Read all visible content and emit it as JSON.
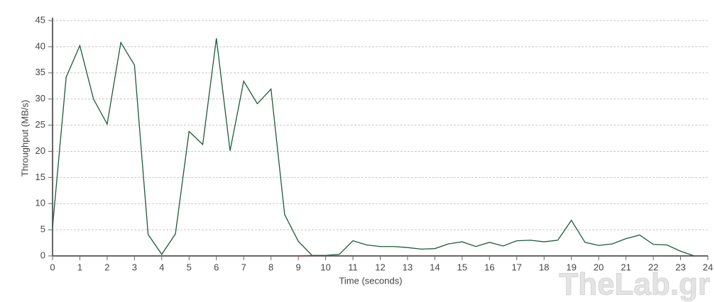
{
  "chart_data": {
    "type": "line",
    "x_label": "Time (seconds)",
    "y_label": "Throughput (MB/s)",
    "watermark": "TheLab.gr",
    "x": [
      0,
      0.5,
      1,
      1.5,
      2,
      2.5,
      3,
      3.5,
      4,
      4.5,
      5,
      5.5,
      6,
      6.5,
      7,
      7.5,
      8,
      8.5,
      9,
      9.5,
      10,
      10.5,
      11,
      11.5,
      12,
      12.5,
      13,
      13.5,
      14,
      14.5,
      15,
      15.5,
      16,
      16.5,
      17,
      17.5,
      18,
      18.5,
      19,
      19.5,
      20,
      20.5,
      21,
      21.5,
      22,
      22.5,
      23,
      23.5
    ],
    "series": [
      {
        "color": "#1d5b3c",
        "values": [
          5.5,
          34.2,
          40.2,
          30,
          25.2,
          40.8,
          36.5,
          4.1,
          0.3,
          4.2,
          23.8,
          21.3,
          41.6,
          20.1,
          33.4,
          29.1,
          31.9,
          7.9,
          2.8,
          0.1,
          0.1,
          0.3,
          2.9,
          2.1,
          1.8,
          1.8,
          1.6,
          1.3,
          1.4,
          2.3,
          2.7,
          1.8,
          2.6,
          1.9,
          2.9,
          3.0,
          2.7,
          3.0,
          6.8,
          2.6,
          2.0,
          2.3,
          3.3,
          4.0,
          2.2,
          2.1,
          0.9,
          0
        ]
      },
      {
        "color": "#d62728",
        "values": [
          null,
          null,
          null,
          null,
          null,
          null,
          null,
          null,
          null,
          null,
          null,
          null,
          null,
          null,
          null,
          null,
          null,
          null,
          0,
          0.1,
          null,
          null,
          null,
          null,
          null,
          null,
          null,
          null,
          null,
          null,
          null,
          null,
          null,
          null,
          null,
          null,
          null,
          null,
          null,
          null,
          null,
          null,
          null,
          null,
          null,
          null,
          null,
          null
        ]
      }
    ],
    "xlim": [
      0,
      24
    ],
    "xticks": [
      0,
      1,
      2,
      3,
      4,
      5,
      6,
      7,
      8,
      9,
      10,
      11,
      12,
      13,
      14,
      15,
      16,
      17,
      18,
      19,
      20,
      21,
      22,
      23,
      24
    ],
    "ylim": [
      0,
      45
    ],
    "yticks": [
      0,
      5,
      10,
      15,
      20,
      25,
      30,
      35,
      40,
      45
    ],
    "grid": true
  }
}
